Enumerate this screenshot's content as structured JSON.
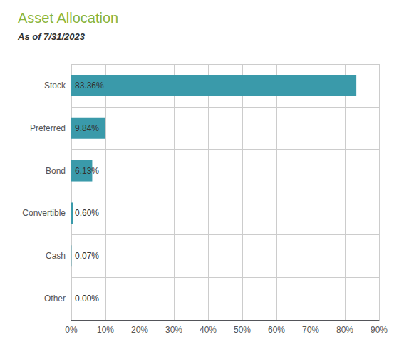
{
  "chart_data": {
    "type": "bar",
    "orientation": "horizontal",
    "title": "Asset Allocation",
    "subtitle": "As of 7/31/2023",
    "categories": [
      "Stock",
      "Preferred",
      "Bond",
      "Convertible",
      "Cash",
      "Other"
    ],
    "values": [
      83.36,
      9.84,
      6.13,
      0.6,
      0.07,
      0.0
    ],
    "value_labels": [
      "83.36%",
      "9.84%",
      "6.13%",
      "0.60%",
      "0.07%",
      "0.00%"
    ],
    "color": "#3a9aaa",
    "xlim": [
      0,
      90
    ],
    "xticks": [
      {
        "value": 0,
        "label": "0%"
      },
      {
        "value": 10,
        "label": "10%"
      },
      {
        "value": 20,
        "label": "20%"
      },
      {
        "value": 30,
        "label": "30%"
      },
      {
        "value": 40,
        "label": "40%"
      },
      {
        "value": 50,
        "label": "50%"
      },
      {
        "value": 60,
        "label": "60%"
      },
      {
        "value": 70,
        "label": "70%"
      },
      {
        "value": 80,
        "label": "80%"
      },
      {
        "value": 90,
        "label": "90%"
      }
    ],
    "grid": true,
    "data_labels": true
  }
}
